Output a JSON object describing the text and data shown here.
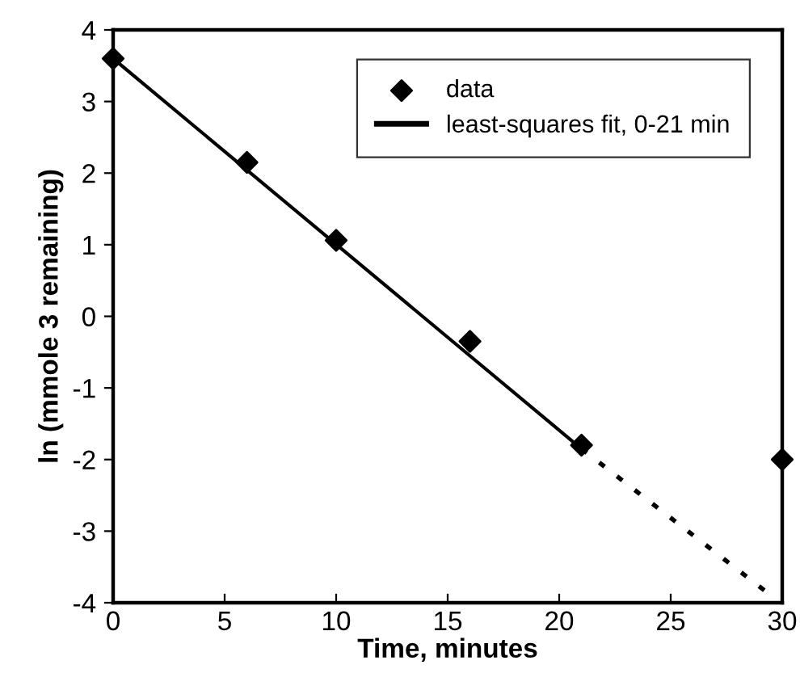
{
  "chart_data": {
    "type": "scatter",
    "xlabel": "Time, minutes",
    "ylabel": "ln (mmole 3 remaining)",
    "xlim": [
      0,
      30
    ],
    "ylim": [
      -4,
      4
    ],
    "xticks": [
      0,
      5,
      10,
      15,
      20,
      25,
      30
    ],
    "yticks": [
      -4,
      -3,
      -2,
      -1,
      0,
      1,
      2,
      3,
      4
    ],
    "grid": false,
    "legend": "top right",
    "series": [
      {
        "name": "data",
        "marker": "diamond",
        "color": "#000000",
        "x": [
          0,
          6,
          10,
          16,
          21,
          30
        ],
        "values": [
          3.6,
          2.15,
          1.06,
          -0.35,
          -1.8,
          -2.0
        ]
      },
      {
        "name": "least-squares fit, 0-21 min",
        "type": "line",
        "line_style": "solid",
        "marker": "none",
        "color": "#000000",
        "x": [
          0,
          21
        ],
        "values": [
          3.6,
          -1.85
        ]
      },
      {
        "type": "line",
        "line_style": "dotted",
        "marker": "none",
        "color": "#000000",
        "x": [
          21,
          29.5
        ],
        "values": [
          -1.85,
          -3.9
        ]
      }
    ]
  }
}
